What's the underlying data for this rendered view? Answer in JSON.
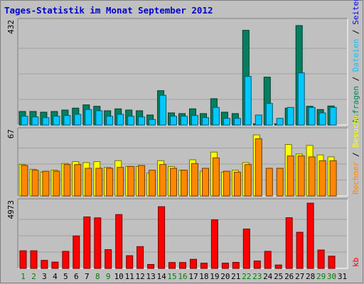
{
  "chart_data": {
    "type": "bar",
    "title": "Tages-Statistik im Monat September 2012",
    "colors": {
      "background": "#c0c0c0",
      "title": "#0000cc",
      "anfragen": "#008060",
      "dateien": "#00c8ff",
      "seiten": "#0000ff",
      "besuche": "#ffff00",
      "rechner": "#ff8800",
      "kb": "#ff0000",
      "weekday_label": "#000000",
      "weekend_label": "#008000"
    },
    "categories": [
      "1",
      "2",
      "3",
      "4",
      "5",
      "6",
      "7",
      "8",
      "9",
      "10",
      "11",
      "12",
      "13",
      "14",
      "15",
      "16",
      "17",
      "18",
      "19",
      "20",
      "21",
      "22",
      "23",
      "24",
      "25",
      "26",
      "27",
      "28",
      "29",
      "30",
      "31"
    ],
    "weekend_days": [
      "1",
      "2",
      "8",
      "9",
      "15",
      "16",
      "22",
      "23",
      "29",
      "30"
    ],
    "panels": [
      {
        "id": "hits",
        "ymax_label": "432",
        "ymax": 432,
        "right_label_parts": [
          {
            "text": "Anfragen",
            "color_key": "anfragen"
          },
          {
            "text": " / ",
            "color_key": "weekday_label"
          },
          {
            "text": "Dateien",
            "color_key": "dateien"
          },
          {
            "text": " / ",
            "color_key": "weekday_label"
          },
          {
            "text": "Seiten",
            "color_key": "seiten"
          }
        ],
        "series": [
          {
            "name": "Anfragen",
            "color_key": "anfragen",
            "values": [
              57,
              57,
              54,
              57,
              63,
              71,
              85,
              79,
              60,
              68,
              63,
              60,
              42,
              145,
              51,
              48,
              68,
              48,
              111,
              54,
              48,
              400,
              5,
              202,
              5,
              71,
              420,
              79,
              65,
              80,
              0
            ]
          },
          {
            "name": "Dateien",
            "color_key": "dateien",
            "values": [
              37,
              34,
              31,
              37,
              40,
              45,
              65,
              60,
              37,
              45,
              37,
              34,
              23,
              125,
              37,
              37,
              40,
              31,
              74,
              28,
              28,
              205,
              42,
              91,
              28,
              74,
              220,
              74,
              51,
              74,
              0
            ]
          },
          {
            "name": "Seiten",
            "color_key": "seiten",
            "values": [
              0,
              0,
              0,
              0,
              0,
              0,
              0,
              0,
              0,
              0,
              0,
              0,
              0,
              0,
              0,
              0,
              0,
              0,
              0,
              0,
              0,
              0,
              0,
              0,
              0,
              0,
              0,
              0,
              0,
              0,
              0
            ]
          }
        ]
      },
      {
        "id": "visits",
        "ymax_label": "67",
        "ymax": 67,
        "right_label_parts": [
          {
            "text": "Rechner",
            "color_key": "rechner"
          },
          {
            "text": " / ",
            "color_key": "weekday_label"
          },
          {
            "text": "Besuche",
            "color_key": "besuche"
          }
        ],
        "series": [
          {
            "name": "Besuche",
            "color_key": "besuche",
            "values": [
              33,
              28,
              25,
              27,
              34,
              36,
              35,
              36,
              30,
              37,
              31,
              31,
              24,
              37,
              31,
              27,
              38,
              26,
              46,
              25,
              27,
              35,
              64,
              0,
              0,
              54,
              44,
              53,
              43,
              41,
              0
            ]
          },
          {
            "name": "Rechner",
            "color_key": "rechner",
            "values": [
              32,
              27,
              26,
              26,
              33,
              33,
              29,
              29,
              29,
              30,
              31,
              32,
              27,
              33,
              29,
              27,
              34,
              29,
              40,
              26,
              25,
              33,
              60,
              29,
              29,
              42,
              42,
              41,
              37,
              37,
              0
            ]
          }
        ]
      },
      {
        "id": "kb",
        "ymax_label": "4973",
        "ymax": 4973,
        "right_label_parts": [
          {
            "text": "kb",
            "color_key": "kb"
          }
        ],
        "series": [
          {
            "name": "kb",
            "color_key": "kb",
            "values": [
              1340,
              1340,
              613,
              480,
              1300,
              2470,
              3920,
              3850,
              1425,
              4100,
              970,
              1660,
              300,
              4700,
              450,
              450,
              690,
              400,
              3700,
              400,
              460,
              3000,
              570,
              1300,
              260,
              3860,
              2750,
              4970,
              1400,
              930,
              0
            ]
          }
        ]
      }
    ]
  }
}
